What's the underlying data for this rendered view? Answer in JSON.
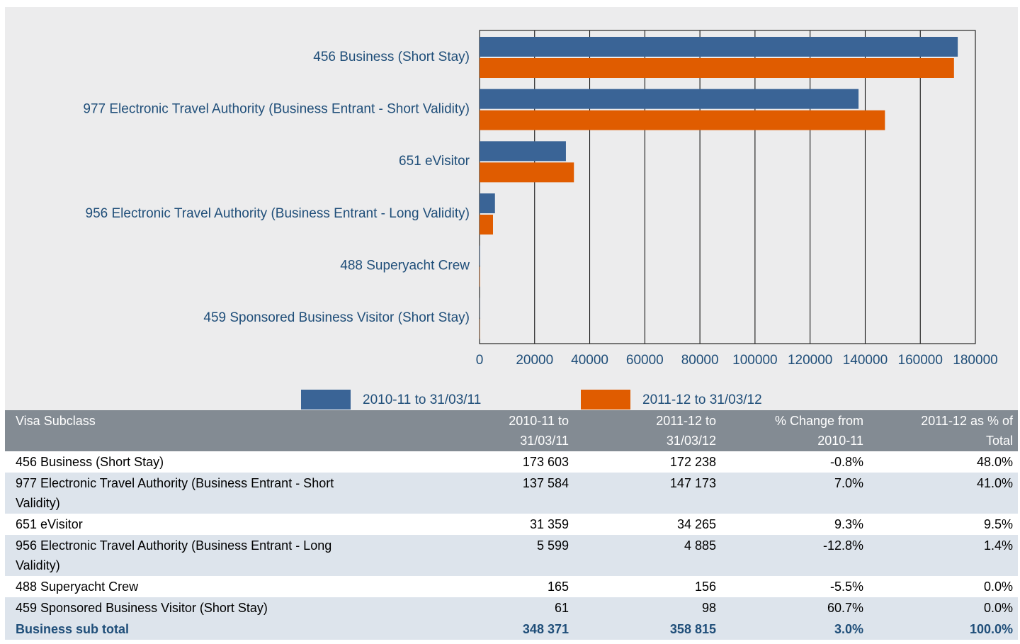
{
  "chart_data": {
    "type": "bar",
    "orientation": "horizontal",
    "categories": [
      "456 Business (Short Stay)",
      "977 Electronic Travel Authority (Business Entrant - Short Validity)",
      "651 eVisitor",
      "956 Electronic Travel Authority (Business Entrant - Long Validity)",
      "488 Superyacht Crew",
      "459 Sponsored Business Visitor (Short Stay)"
    ],
    "series": [
      {
        "name": "2010-11 to 31/03/11",
        "color": "#3a6496",
        "values": [
          173603,
          137584,
          31359,
          5599,
          165,
          61
        ]
      },
      {
        "name": "2011-12 to 31/03/12",
        "color": "#e05c00",
        "values": [
          172238,
          147173,
          34265,
          4885,
          156,
          98
        ]
      }
    ],
    "xlim": [
      0,
      180000
    ],
    "xticks": [
      0,
      20000,
      40000,
      60000,
      80000,
      100000,
      120000,
      140000,
      160000,
      180000
    ],
    "grid": true
  },
  "table": {
    "header": [
      "Visa Subclass",
      "2010-11 to 31/03/11",
      "2011-12 to 31/03/12",
      "% Change from 2010-11",
      "2011-12 as % of Total"
    ],
    "rows": [
      [
        "456 Business (Short Stay)",
        "173 603",
        "172 238",
        "-0.8%",
        "48.0%"
      ],
      [
        "977 Electronic Travel Authority (Business Entrant - Short Validity)",
        "137 584",
        "147 173",
        "7.0%",
        "41.0%"
      ],
      [
        "651 eVisitor",
        "31 359",
        "34 265",
        "9.3%",
        "9.5%"
      ],
      [
        "956 Electronic Travel Authority (Business Entrant - Long Validity)",
        "5 599",
        "4 885",
        "-12.8%",
        "1.4%"
      ],
      [
        "488 Superyacht Crew",
        "165",
        "156",
        "-5.5%",
        "0.0%"
      ],
      [
        "459 Sponsored Business Visitor (Short Stay)",
        "61",
        "98",
        "60.7%",
        "0.0%"
      ]
    ],
    "total": [
      "Business sub total",
      "348 371",
      "358 815",
      "3.0%",
      "100.0%"
    ]
  }
}
